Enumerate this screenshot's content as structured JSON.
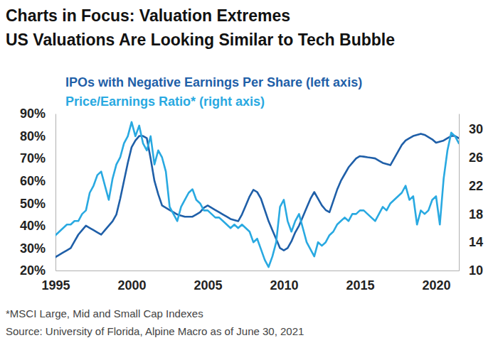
{
  "chart_data": {
    "type": "line",
    "title": "Charts in Focus: Valuation Extremes",
    "subtitle": "US Valuations Are Looking Similar to Tech Bubble",
    "footnotes": [
      "*MSCI Large, Mid and Small Cap Indexes",
      "Source: University of Florida, Alpine Macro as of June 30, 2021"
    ],
    "legend": "top-left",
    "x": [
      1995,
      1995.25,
      1995.5,
      1995.75,
      1996,
      1996.25,
      1996.5,
      1996.75,
      1997,
      1997.25,
      1997.5,
      1997.75,
      1998,
      1998.25,
      1998.5,
      1998.75,
      1999,
      1999.25,
      1999.5,
      1999.75,
      2000,
      2000.25,
      2000.5,
      2000.75,
      2001,
      2001.25,
      2001.5,
      2001.75,
      2002,
      2002.25,
      2002.5,
      2002.75,
      2003,
      2003.25,
      2003.5,
      2003.75,
      2004,
      2004.25,
      2004.5,
      2004.75,
      2005,
      2005.25,
      2005.5,
      2005.75,
      2006,
      2006.25,
      2006.5,
      2006.75,
      2007,
      2007.25,
      2007.5,
      2007.75,
      2008,
      2008.25,
      2008.5,
      2008.75,
      2009,
      2009.25,
      2009.5,
      2009.75,
      2010,
      2010.25,
      2010.5,
      2010.75,
      2011,
      2011.25,
      2011.5,
      2011.75,
      2012,
      2012.25,
      2012.5,
      2012.75,
      2013,
      2013.25,
      2013.5,
      2013.75,
      2014,
      2014.25,
      2014.5,
      2014.75,
      2015,
      2015.25,
      2015.5,
      2015.75,
      2016,
      2016.25,
      2016.5,
      2016.75,
      2017,
      2017.25,
      2017.5,
      2017.75,
      2018,
      2018.25,
      2018.5,
      2018.75,
      2019,
      2019.25,
      2019.5,
      2019.75,
      2020,
      2020.25,
      2020.5,
      2020.75,
      2021,
      2021.25,
      2021.5
    ],
    "xlim": [
      1995,
      2021.5
    ],
    "xticks": [
      1995,
      2000,
      2005,
      2010,
      2015,
      2020
    ],
    "ylim": [
      20,
      90
    ],
    "yticks": [
      {
        "value": 20,
        "label": "20%"
      },
      {
        "value": 30,
        "label": "30%"
      },
      {
        "value": 40,
        "label": "40%"
      },
      {
        "value": 50,
        "label": "50%"
      },
      {
        "value": 60,
        "label": "60%"
      },
      {
        "value": 70,
        "label": "70%"
      },
      {
        "value": 80,
        "label": "80%"
      },
      {
        "value": 90,
        "label": "90%"
      }
    ],
    "y2lim": [
      10,
      32.2
    ],
    "y2ticks": [
      10,
      14,
      18,
      22,
      26,
      30
    ],
    "series": [
      {
        "name": "IPOs with Negative Earnings Per Share (left axis)",
        "color": "#1f5fa8",
        "values": [
          26,
          27,
          28,
          29,
          30,
          33,
          36,
          38,
          40,
          39,
          38,
          37,
          36,
          38,
          40,
          42,
          45,
          52,
          60,
          68,
          75,
          78,
          80,
          80,
          79,
          70,
          60,
          54,
          49,
          48,
          47,
          46,
          45,
          44.5,
          44,
          44,
          44,
          45,
          46,
          48,
          49,
          48,
          47,
          46,
          45,
          44,
          43,
          42.5,
          42,
          45,
          49,
          53,
          56,
          55,
          52,
          47,
          42,
          38,
          34,
          30,
          29,
          30,
          33,
          37,
          40,
          44,
          48,
          52,
          55,
          52,
          49,
          47,
          46,
          51,
          56,
          60,
          63,
          66,
          68,
          70,
          71,
          70.8,
          70.5,
          70.3,
          70,
          69,
          68,
          67.5,
          67,
          70,
          73,
          76,
          78,
          79,
          80,
          80.5,
          81,
          80.5,
          79.5,
          78.5,
          77,
          77.5,
          78,
          79,
          80,
          80,
          79
        ]
      },
      {
        "name": "Price/Earnings Ratio* (right axis)",
        "color": "#29a9e1",
        "axis": "y2",
        "values": [
          15,
          15.5,
          16,
          16.5,
          16.5,
          17,
          17,
          18,
          18.5,
          21,
          22,
          23.5,
          24,
          22,
          20,
          23,
          25,
          26,
          28,
          29,
          31,
          29,
          30.5,
          28,
          27,
          29,
          25,
          27,
          26,
          24,
          19,
          18,
          17,
          19,
          20,
          21,
          21.5,
          20,
          19.5,
          18.5,
          18.5,
          18,
          17.5,
          17.5,
          17,
          16.5,
          16,
          16.5,
          16,
          16.5,
          16,
          15.5,
          14,
          14.5,
          13,
          11.5,
          10.5,
          12,
          14,
          19,
          20,
          17,
          15.5,
          17,
          18,
          16,
          14,
          13,
          12,
          14,
          13.5,
          14,
          15,
          15.5,
          16.5,
          17,
          17.5,
          17,
          18,
          18,
          18.5,
          18.5,
          18,
          17.5,
          17,
          18,
          19,
          18.5,
          19.5,
          20,
          20.5,
          21,
          22,
          20,
          20.5,
          16.5,
          18.5,
          18,
          18.5,
          20,
          20.5,
          16.5,
          23,
          27,
          29.5,
          29,
          28
        ]
      }
    ]
  }
}
